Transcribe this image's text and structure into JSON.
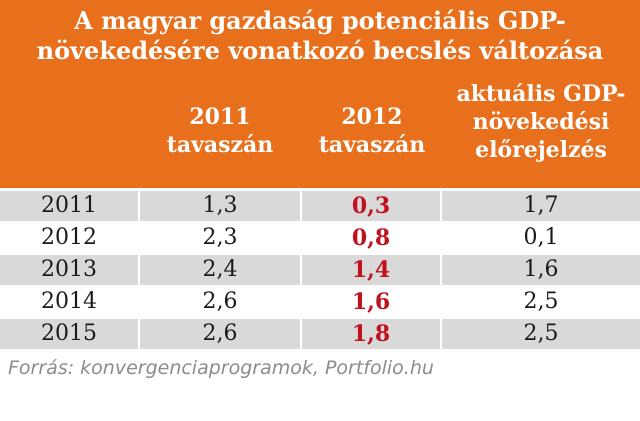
{
  "chart_data": {
    "type": "table",
    "title": "A magyar gazdaság potenciális GDP-növekedésére vonatkozó becslés változása",
    "columns": [
      "",
      "2011 tavaszán",
      "2012 tavaszán",
      "aktuális GDP-növekedési előrejelzés"
    ],
    "rows": [
      {
        "year": "2011",
        "v2011": "1,3",
        "v2012": "0,3",
        "actual": "1,7"
      },
      {
        "year": "2012",
        "v2011": "2,3",
        "v2012": "0,8",
        "actual": "0,1"
      },
      {
        "year": "2013",
        "v2011": "2,4",
        "v2012": "1,4",
        "actual": "1,6"
      },
      {
        "year": "2014",
        "v2011": "2,6",
        "v2012": "1,6",
        "actual": "2,5"
      },
      {
        "year": "2015",
        "v2011": "2,6",
        "v2012": "1,8",
        "actual": "2,5"
      }
    ],
    "colors": {
      "header_background": "#e8701d",
      "header_text": "#ffffff",
      "shaded_row": "#d9d9d9",
      "highlight_text": "#c0111f"
    }
  },
  "header": {
    "title_line1": "A magyar gazdaság potenciális GDP-",
    "title_line2": "növekedésére vonatkozó becslés változása",
    "col1_line1": "2011",
    "col1_line2": "tavaszán",
    "col2_line1": "2012",
    "col2_line2": "tavaszán",
    "col3_line1": "aktuális GDP-",
    "col3_line2": "növekedési",
    "col3_line3": "előrejelzés"
  },
  "source": "Forrás: konvergenciaprogramok, Portfolio.hu"
}
